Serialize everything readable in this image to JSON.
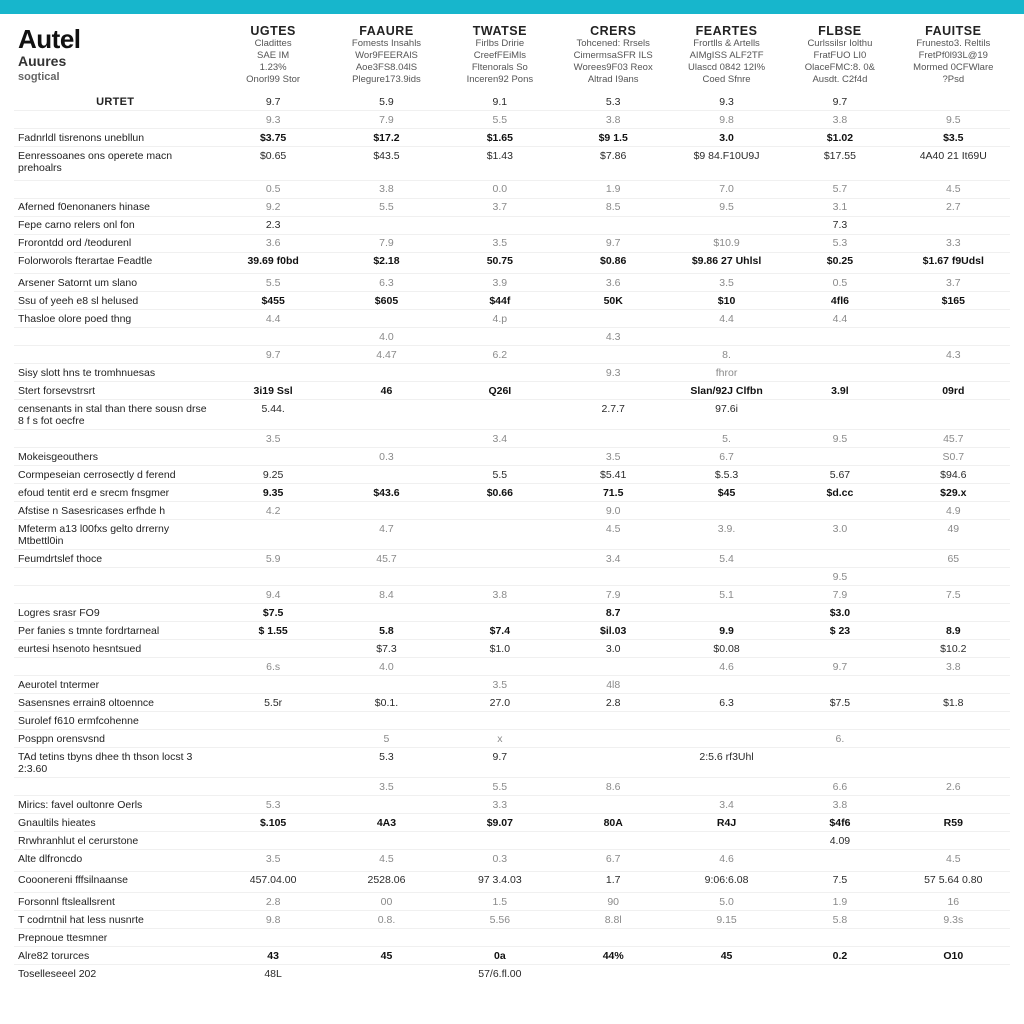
{
  "brand": {
    "main": "Autel",
    "sub": "Auures",
    "tag": "sogtical"
  },
  "columns": [
    {
      "h1": "UGTES",
      "h2": "Cladittes",
      "h3": "SAE IM",
      "h4": "1.23%",
      "h5": "Onorl99 Stor"
    },
    {
      "h1": "FAAURE",
      "h2": "Fomests Insahls",
      "h3": "Wor9FEERAlS",
      "h4": "Aoe3FS8.04lS",
      "h5": "Plegure173.9ids"
    },
    {
      "h1": "TWATSE",
      "h2": "Firlbs Dririe",
      "h3": "CreefFEiMls",
      "h4": "Fltenorals So",
      "h5": "Inceren92 Pons"
    },
    {
      "h1": "CRERS",
      "h2": "Tohcened: Rrsels",
      "h3": "CimermsaSFR ILS",
      "h4": "Worees9F03 Reox",
      "h5": "Altrad I9ans"
    },
    {
      "h1": "FEARTES",
      "h2": "Frortlls & Artells",
      "h3": "AIMgISS ALF2TF",
      "h4": "Ulascd 0842 12I%",
      "h5": "Coed Sfnre"
    },
    {
      "h1": "FLBSE",
      "h2": "Curlssilsr Iolthu",
      "h3": "FratFUO LI0",
      "h4": "OlaceFMC:8. 0&",
      "h5": "Ausdt. C2f4d"
    },
    {
      "h1": "FAUITSE",
      "h2": "Frunesto3. Reltils",
      "h3": "FretPf0l93L@19",
      "h4": "Mormed 0CFWlare",
      "h5": "?Psd"
    }
  ],
  "rows": [
    {
      "type": "section",
      "label": "URTET",
      "vals": [
        "9.7",
        "5.9",
        "9.1",
        "5.3",
        "9.3",
        "9.7",
        ""
      ]
    },
    {
      "type": "faint",
      "label": "",
      "vals": [
        "9.3",
        "7.9",
        "5.5",
        "3.8",
        "9.8",
        "3.8",
        "9.5"
      ]
    },
    {
      "type": "bold",
      "label": "Fadnrldl tisrenons unebllun",
      "vals": [
        "$3.75",
        "$17.2",
        "$1.65",
        "$9 1.5",
        "3.0",
        "$1.02",
        "$3.5"
      ]
    },
    {
      "type": "plain",
      "label": "Eenressoanes ons operete macn prehoalrs",
      "vals": [
        "$0.65",
        "$43.5",
        "$1.43",
        "$7.86",
        "$9 84.F10U9J",
        "$17.55",
        "4A40 21 It69U"
      ]
    },
    {
      "type": "spacer"
    },
    {
      "type": "faint",
      "label": "",
      "vals": [
        "0.5",
        "3.8",
        "0.0",
        "1.9",
        "7.0",
        "5.7",
        "4.5"
      ]
    },
    {
      "type": "faint",
      "label": "Aferned f0enonaners hinase",
      "vals": [
        "9.2",
        "5.5",
        "3.7",
        "8.5",
        "9.5",
        "3.1",
        "2.7"
      ]
    },
    {
      "type": "plain",
      "label": "Fepe carno relers onl fon",
      "vals": [
        "2.3",
        "",
        "",
        "",
        "",
        "7.3",
        ""
      ]
    },
    {
      "type": "faint",
      "label": "Frorontdd ord /teodurenl",
      "vals": [
        "3.6",
        "7.9",
        "3.5",
        "9.7",
        "$10.9",
        "5.3",
        "3.3"
      ]
    },
    {
      "type": "bold",
      "label": "Folorworols fterartae Feadtle",
      "vals": [
        "39.69 f0bd",
        "$2.18",
        "50.75",
        "$0.86",
        "$9.86 27 Uhlsl",
        "$0.25",
        "$1.67 f9Udsl"
      ]
    },
    {
      "type": "spacer"
    },
    {
      "type": "faint",
      "label": "Arsener Satornt um slano",
      "vals": [
        "5.5",
        "6.3",
        "3.9",
        "3.6",
        "3.5",
        "0.5",
        "3.7"
      ]
    },
    {
      "type": "bold",
      "label": "Ssu of yeeh e8 sl helused",
      "vals": [
        "$455",
        "$605",
        "$44f",
        "50K",
        "$10",
        "4fl6",
        "$165"
      ]
    },
    {
      "type": "faint",
      "label": "Thasloe olore poed thng",
      "vals": [
        "4.4",
        "",
        "4.p",
        "",
        "4.4",
        "4.4",
        ""
      ]
    },
    {
      "type": "faint",
      "label": "",
      "vals": [
        "",
        "4.0",
        "",
        "4.3",
        "",
        "",
        ""
      ]
    },
    {
      "type": "faint",
      "label": "",
      "vals": [
        "9.7",
        "4.47",
        "6.2",
        "",
        "8.",
        "",
        "4.3"
      ]
    },
    {
      "type": "faint",
      "label": "Sisy slott hns te tromhnuesas",
      "vals": [
        "",
        "",
        "",
        "9.3",
        "fhror",
        "",
        ""
      ]
    },
    {
      "type": "bold",
      "label": "Stert forsevstrsrt",
      "vals": [
        "3i19 Ssl",
        "46",
        "Q26I",
        "",
        "Slan/92J Clfbn",
        "3.9l",
        "09rd"
      ]
    },
    {
      "type": "plain",
      "label": "censenants in stal than there sousn drse 8 f s fot oecfre",
      "vals": [
        "5.44.",
        "",
        "",
        "2.7.7",
        "97.6i",
        "",
        ""
      ]
    },
    {
      "type": "faint",
      "label": "",
      "vals": [
        "3.5",
        "",
        "3.4",
        "",
        "5.",
        "9.5",
        "45.7"
      ]
    },
    {
      "type": "faint",
      "label": "Mokeisgeouthers",
      "vals": [
        "",
        "0.3",
        "",
        "3.5",
        "6.7",
        "",
        "S0.7"
      ]
    },
    {
      "type": "plain",
      "label": "Cormpeseian cerrosectly d ferend",
      "vals": [
        "9.25",
        "",
        "5.5",
        "$5.41",
        "$.5.3",
        "5.67",
        "$94.6"
      ]
    },
    {
      "type": "bold",
      "label": "efoud tentit erd e srecm fnsgmer",
      "vals": [
        "9.35",
        "$43.6",
        "$0.66",
        "71.5",
        "$45",
        "$d.cc",
        "$29.x"
      ]
    },
    {
      "type": "faint",
      "label": "Afstise n Sasesricases erfhde h",
      "vals": [
        "4.2",
        "",
        "",
        "9.0",
        "",
        "",
        "4.9"
      ]
    },
    {
      "type": "faint",
      "label": "Mfeterm a13 l00fxs gelto drrerny Mtbettl0in",
      "vals": [
        "",
        "4.7",
        "",
        "4.5",
        "3.9.",
        "3.0",
        "49"
      ]
    },
    {
      "type": "faint",
      "label": "Feumdrtslef thoce",
      "vals": [
        "5.9",
        "45.7",
        "",
        "3.4",
        "5.4",
        "",
        "65"
      ]
    },
    {
      "type": "faint",
      "label": "",
      "vals": [
        "",
        "",
        "",
        "",
        "",
        "9.5",
        ""
      ]
    },
    {
      "type": "faint",
      "label": "",
      "vals": [
        "9.4",
        "8.4",
        "3.8",
        "7.9",
        "5.1",
        "7.9",
        "7.5"
      ]
    },
    {
      "type": "bold",
      "label": "Logres srasr FO9",
      "vals": [
        "$7.5",
        "",
        "",
        "8.7",
        "",
        "$3.0",
        ""
      ]
    },
    {
      "type": "bold",
      "label": "Per fanies s tmnte fordrtarneal",
      "vals": [
        "$ 1.55",
        "5.8",
        "$7.4",
        "$il.03",
        "9.9",
        "$ 23",
        "8.9"
      ]
    },
    {
      "type": "plain",
      "label": "eurtesi hsenoto hesntsued",
      "vals": [
        "",
        "$7.3",
        "$1.0",
        "3.0",
        "$0.08",
        "",
        "$10.2"
      ]
    },
    {
      "type": "faint",
      "label": "",
      "vals": [
        "6.s",
        "4.0",
        "",
        "",
        "4.6",
        "9.7",
        "3.8"
      ]
    },
    {
      "type": "faint",
      "label": "Aeurotel tntermer",
      "vals": [
        "",
        "",
        "3.5",
        "4l8",
        "",
        "",
        ""
      ]
    },
    {
      "type": "plain",
      "label": "Sasensnes errain8 oltoennce",
      "vals": [
        "5.5r",
        "$0.1.",
        "27.0",
        "2.8",
        "6.3",
        "$7.5",
        "$1.8"
      ]
    },
    {
      "type": "plain",
      "label": "Surolef f610 ermfcohenne",
      "vals": [
        "",
        "",
        "",
        "",
        "",
        "",
        ""
      ]
    },
    {
      "type": "faint",
      "label": "Posppn orensvsnd",
      "vals": [
        "",
        "5",
        "x",
        "",
        "",
        "6.",
        ""
      ]
    },
    {
      "type": "plain",
      "label": "TAd tetins tbyns dhee th thson locst 3 2:3.60",
      "vals": [
        "",
        "5.3",
        "9.7",
        "",
        "2:5.6 rf3Uhl",
        "",
        ""
      ]
    },
    {
      "type": "faint",
      "label": "",
      "vals": [
        "",
        "3.5",
        "5.5",
        "8.6",
        "",
        "6.6",
        "2.6"
      ]
    },
    {
      "type": "faint",
      "label": "Mirics: favel oultonre Oerls",
      "vals": [
        "5.3",
        "",
        "3.3",
        "",
        "3.4",
        "3.8",
        ""
      ]
    },
    {
      "type": "bold",
      "label": "Gnaultils hieates",
      "vals": [
        "$.105",
        "4A3",
        "$9.07",
        "80A",
        "R4J",
        "$4f6",
        "R59"
      ]
    },
    {
      "type": "plain",
      "label": "Rrwhranhlut el cerurstone",
      "vals": [
        "",
        "",
        "",
        "",
        "",
        "4.09",
        ""
      ]
    },
    {
      "type": "faint",
      "label": "Alte dlfroncdo",
      "vals": [
        "3.5",
        "4.5",
        "0.3",
        "6.7",
        "4.6",
        "",
        "4.5"
      ]
    },
    {
      "type": "spacer"
    },
    {
      "type": "plain",
      "label": "Cooonereni fffsilnaanse",
      "vals": [
        "457.04.00",
        "2528.06",
        "97 3.4.03",
        "1.7",
        "9:06:6.08",
        "7.5",
        "57 5.64 0.80"
      ]
    },
    {
      "type": "spacer"
    },
    {
      "type": "faint",
      "label": "Forsonnl ftsleallsrent",
      "vals": [
        "2.8",
        "00",
        "1.5",
        "90",
        "5.0",
        "1.9",
        "16"
      ]
    },
    {
      "type": "faint",
      "label": "T codrntnil hat less nusnrte",
      "vals": [
        "9.8",
        "0.8.",
        "5.56",
        "8.8l",
        "9.15",
        "5.8",
        "9.3s"
      ]
    },
    {
      "type": "plain",
      "label": "Prepnoue ttesmner",
      "vals": [
        "",
        "",
        "",
        "",
        "",
        "",
        ""
      ]
    },
    {
      "type": "bold",
      "label": "Alre82 torurces",
      "vals": [
        "43",
        "45",
        "0a",
        "44%",
        "45",
        "0.2",
        "O10"
      ]
    },
    {
      "type": "plain",
      "label": "Toselleseeel 202",
      "vals": [
        "48L",
        "",
        "57/6.fl.00",
        "",
        "",
        "",
        ""
      ]
    }
  ]
}
